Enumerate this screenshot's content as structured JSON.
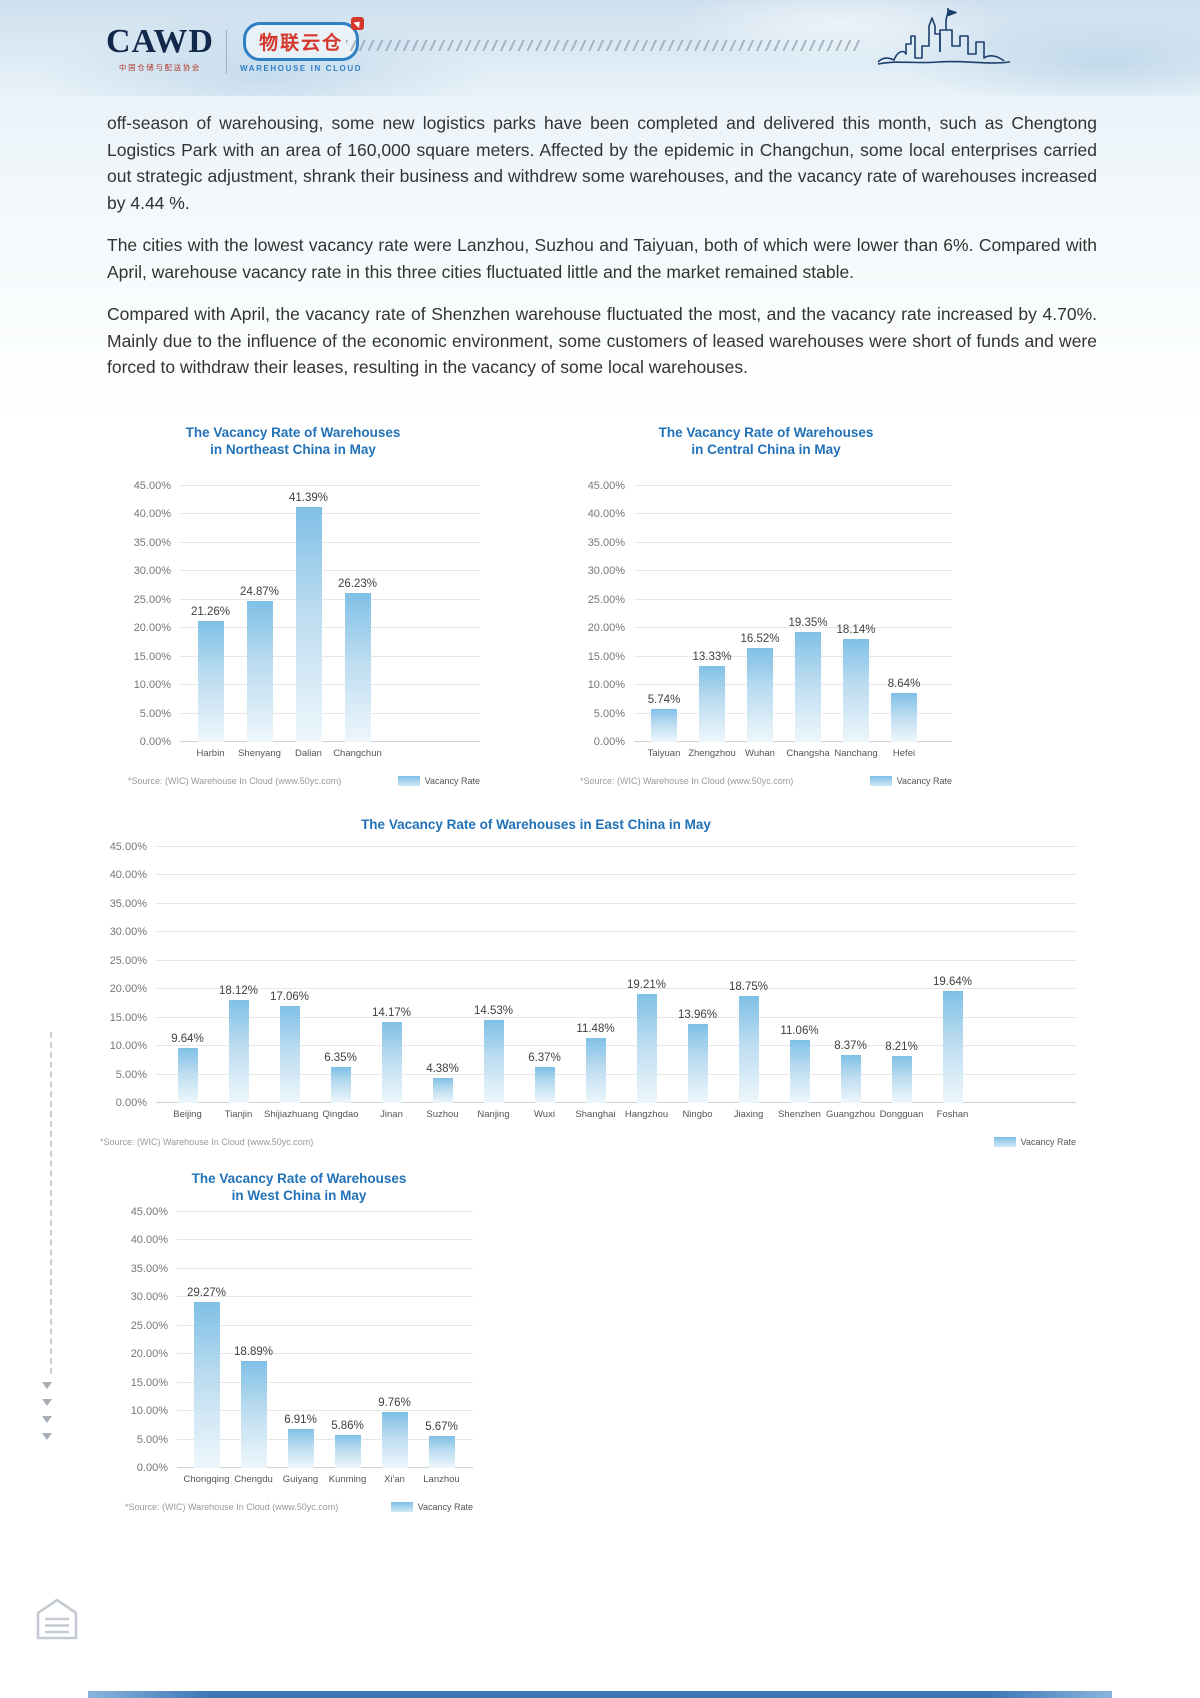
{
  "header": {
    "cawd_logo": "CAWD",
    "cawd_subtitle": "中国仓储与配送协会",
    "wic_logo": "物联云仓",
    "wic_subtitle": "WAREHOUSE IN CLOUD"
  },
  "body_paragraphs": [
    "off-season of warehousing, some new logistics parks have been completed and delivered this month, such as Chengtong Logistics Park with an area of 160,000 square meters. Affected by the epidemic in Changchun, some local enterprises carried out strategic adjustment, shrank their business and withdrew some warehouses, and the vacancy rate of warehouses increased by 4.44 %.",
    "The cities with the lowest vacancy rate were Lanzhou, Suzhou and Taiyuan, both of which were lower than 6%. Compared with April, warehouse vacancy rate in this three cities fluctuated little and the market remained stable.",
    "Compared with April, the vacancy rate of Shenzhen warehouse fluctuated the most, and the vacancy rate increased by 4.70%. Mainly due to the influence of the economic environment, some customers of leased warehouses were short of funds and were forced to withdraw their leases, resulting in the vacancy of some local warehouses."
  ],
  "charts_common": {
    "source_note": "*Source: (WIC) Warehouse In Cloud (www.50yc.com)",
    "legend_label": "Vacancy Rate",
    "bar_color_top": "#7fc0e6",
    "bar_color_bottom": "#eef7fc",
    "title_color": "#2172b8"
  },
  "chart_data": [
    {
      "type": "bar",
      "title": "The Vacancy Rate of Warehouses in Northeast China in May",
      "title_lines": [
        "The Vacancy Rate of Warehouses",
        "in Northeast China in May"
      ],
      "categories": [
        "Harbin",
        "Shenyang",
        "Dalian",
        "Changchun"
      ],
      "values": [
        21.26,
        24.87,
        41.39,
        26.23
      ],
      "xlabel": "",
      "ylabel": "",
      "ylim": [
        0,
        45
      ],
      "ytick_step": 5,
      "grid": true,
      "legend": "Vacancy Rate",
      "legend_position": "bottom-right"
    },
    {
      "type": "bar",
      "title": "The Vacancy Rate of Warehouses in Central China in May",
      "title_lines": [
        "The Vacancy Rate of Warehouses",
        "in Central China in May"
      ],
      "categories": [
        "Taiyuan",
        "Zhengzhou",
        "Wuhan",
        "Changsha",
        "Nanchang",
        "Hefei"
      ],
      "values": [
        5.74,
        13.33,
        16.52,
        19.35,
        18.14,
        8.64
      ],
      "xlabel": "",
      "ylabel": "",
      "ylim": [
        0,
        45
      ],
      "ytick_step": 5,
      "grid": true,
      "legend": "Vacancy Rate",
      "legend_position": "bottom-right"
    },
    {
      "type": "bar",
      "title": "The Vacancy Rate of Warehouses in East China in May",
      "title_lines": [
        "The Vacancy Rate of Warehouses in East China in May"
      ],
      "categories": [
        "Beijing",
        "Tianjin",
        "Shijiazhuang",
        "Qingdao",
        "Jinan",
        "Suzhou",
        "Nanjing",
        "Wuxi",
        "Shanghai",
        "Hangzhou",
        "Ningbo",
        "Jiaxing",
        "Shenzhen",
        "Guangzhou",
        "Dongguan",
        "Foshan"
      ],
      "values": [
        9.64,
        18.12,
        17.06,
        6.35,
        14.17,
        4.38,
        14.53,
        6.37,
        11.48,
        19.21,
        13.96,
        18.75,
        11.06,
        8.37,
        8.21,
        19.64
      ],
      "xlabel": "",
      "ylabel": "",
      "ylim": [
        0,
        45
      ],
      "ytick_step": 5,
      "grid": true,
      "legend": "Vacancy Rate",
      "legend_position": "bottom-right"
    },
    {
      "type": "bar",
      "title": "The Vacancy Rate of Warehouses in West China in May",
      "title_lines": [
        "The Vacancy Rate of Warehouses",
        "in West China in May"
      ],
      "categories": [
        "Chongqing",
        "Chengdu",
        "Guiyang",
        "Kunming",
        "Xi'an",
        "Lanzhou"
      ],
      "values": [
        29.27,
        18.89,
        6.91,
        5.86,
        9.76,
        5.67
      ],
      "xlabel": "",
      "ylabel": "",
      "ylim": [
        0,
        45
      ],
      "ytick_step": 5,
      "grid": true,
      "legend": "Vacancy Rate",
      "legend_position": "bottom-right"
    }
  ]
}
